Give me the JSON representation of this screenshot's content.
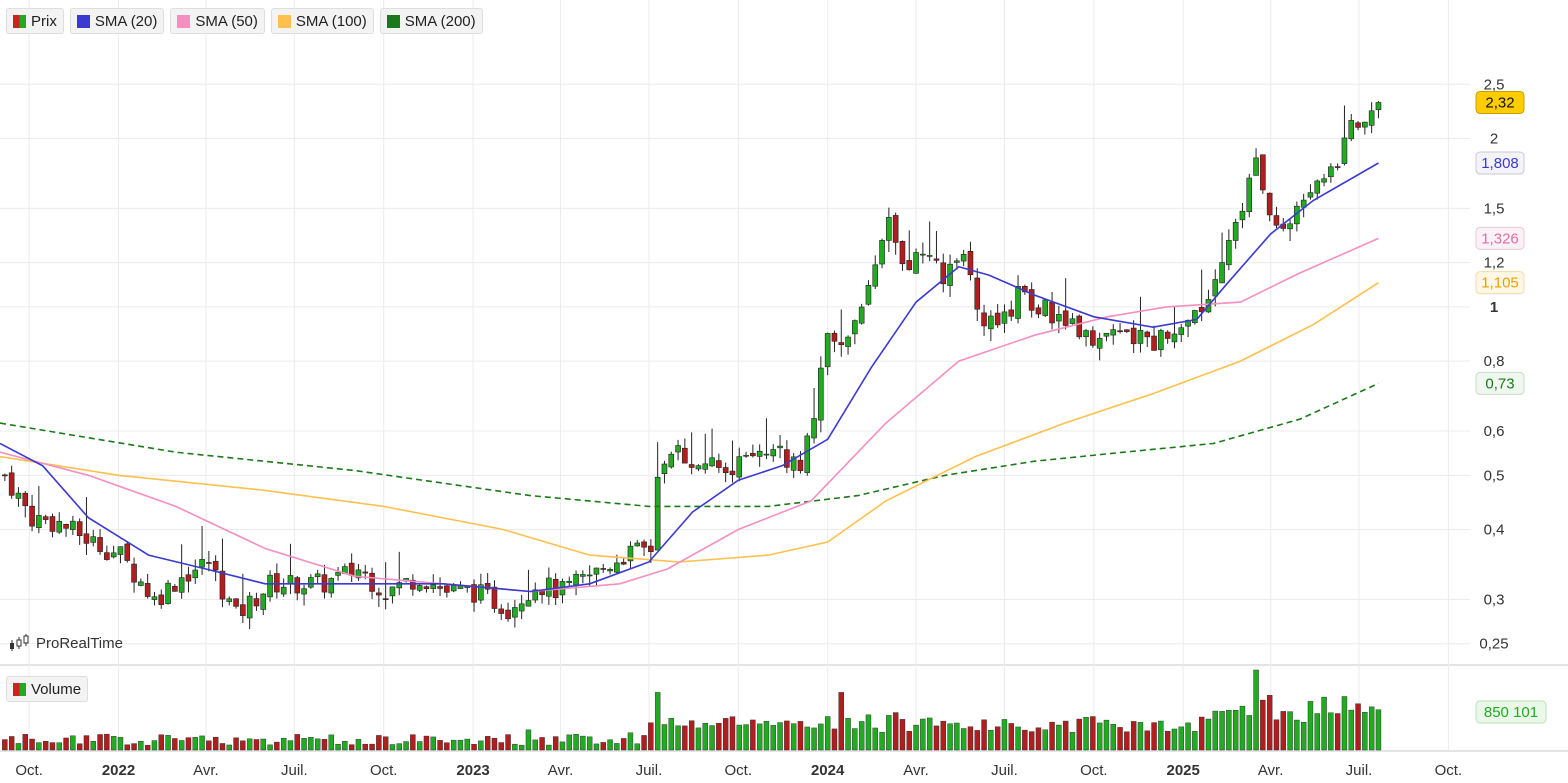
{
  "legend": [
    {
      "label": "Prix",
      "color": "#22aa22",
      "color2": "#cc2222"
    },
    {
      "label": "SMA (20)",
      "color": "#3a3ad0"
    },
    {
      "label": "SMA (50)",
      "color": "#f58fbf"
    },
    {
      "label": "SMA (100)",
      "color": "#ffc04d"
    },
    {
      "label": "SMA (200)",
      "color": "#1a7a1a"
    }
  ],
  "volume_legend": {
    "label": "Volume"
  },
  "brand": {
    "label": "ProRealTime"
  },
  "price_labels": {
    "last": "2,32",
    "sma20": "1,808",
    "sma50": "1,326",
    "sma100": "1,105",
    "sma200": "0,73",
    "volume": "850 101"
  },
  "chart_data": {
    "type": "candlestick",
    "y_scale": "log",
    "ylim": [
      0.23,
      3.0
    ],
    "y_ticks": [
      {
        "value": 2.5,
        "label": "2,5"
      },
      {
        "value": 2.0,
        "label": "2"
      },
      {
        "value": 1.5,
        "label": "1,5"
      },
      {
        "value": 1.2,
        "label": "1,2"
      },
      {
        "value": 1.0,
        "label": "1",
        "bold": true
      },
      {
        "value": 0.8,
        "label": "0,8"
      },
      {
        "value": 0.6,
        "label": "0,6"
      },
      {
        "value": 0.5,
        "label": "0,5"
      },
      {
        "value": 0.4,
        "label": "0,4"
      },
      {
        "value": 0.3,
        "label": "0,3"
      },
      {
        "value": 0.25,
        "label": "0,25"
      }
    ],
    "x_start": "2021-09-01",
    "x_end": "2025-10-15",
    "x_ticks": [
      {
        "date": "2021-10-01",
        "label": "Oct."
      },
      {
        "date": "2022-01-01",
        "label": "2022",
        "bold": true
      },
      {
        "date": "2022-04-01",
        "label": "Avr."
      },
      {
        "date": "2022-07-01",
        "label": "Juil."
      },
      {
        "date": "2022-10-01",
        "label": "Oct."
      },
      {
        "date": "2023-01-01",
        "label": "2023",
        "bold": true
      },
      {
        "date": "2023-04-01",
        "label": "Avr."
      },
      {
        "date": "2023-07-01",
        "label": "Juil."
      },
      {
        "date": "2023-10-01",
        "label": "Oct."
      },
      {
        "date": "2024-01-01",
        "label": "2024",
        "bold": true
      },
      {
        "date": "2024-04-01",
        "label": "Avr."
      },
      {
        "date": "2024-07-01",
        "label": "Juil."
      },
      {
        "date": "2024-10-01",
        "label": "Oct."
      },
      {
        "date": "2025-01-01",
        "label": "2025",
        "bold": true
      },
      {
        "date": "2025-04-01",
        "label": "Avr."
      },
      {
        "date": "2025-07-01",
        "label": "Juil."
      },
      {
        "date": "2025-10-01",
        "label": "Oct."
      }
    ],
    "price_anchors": [
      [
        "2021-09-06",
        0.5
      ],
      [
        "2021-10-04",
        0.42
      ],
      [
        "2021-11-01",
        0.41
      ],
      [
        "2021-12-06",
        0.38
      ],
      [
        "2022-01-03",
        0.36
      ],
      [
        "2022-02-07",
        0.3
      ],
      [
        "2022-03-07",
        0.33
      ],
      [
        "2022-04-04",
        0.35
      ],
      [
        "2022-05-02",
        0.28
      ],
      [
        "2022-06-06",
        0.32
      ],
      [
        "2022-07-04",
        0.32
      ],
      [
        "2022-08-01",
        0.32
      ],
      [
        "2022-09-05",
        0.34
      ],
      [
        "2022-10-03",
        0.31
      ],
      [
        "2022-11-07",
        0.33
      ],
      [
        "2022-12-05",
        0.31
      ],
      [
        "2023-01-02",
        0.31
      ],
      [
        "2023-02-06",
        0.29
      ],
      [
        "2023-03-06",
        0.32
      ],
      [
        "2023-04-03",
        0.31
      ],
      [
        "2023-05-01",
        0.33
      ],
      [
        "2023-06-05",
        0.36
      ],
      [
        "2023-07-03",
        0.37
      ],
      [
        "2023-07-10",
        0.48
      ],
      [
        "2023-07-31",
        0.55
      ],
      [
        "2023-08-28",
        0.52
      ],
      [
        "2023-10-02",
        0.52
      ],
      [
        "2023-11-06",
        0.55
      ],
      [
        "2023-12-04",
        0.52
      ],
      [
        "2023-12-18",
        0.66
      ],
      [
        "2024-01-01",
        0.88
      ],
      [
        "2024-01-22",
        0.88
      ],
      [
        "2024-02-12",
        1.05
      ],
      [
        "2024-03-04",
        1.4
      ],
      [
        "2024-03-18",
        1.15
      ],
      [
        "2024-04-01",
        1.25
      ],
      [
        "2024-04-29",
        1.15
      ],
      [
        "2024-05-20",
        1.2
      ],
      [
        "2024-06-10",
        0.95
      ],
      [
        "2024-06-24",
        0.9
      ],
      [
        "2024-07-15",
        1.05
      ],
      [
        "2024-08-05",
        1.0
      ],
      [
        "2024-09-02",
        0.95
      ],
      [
        "2024-10-07",
        0.88
      ],
      [
        "2024-11-04",
        0.88
      ],
      [
        "2024-12-02",
        0.87
      ],
      [
        "2024-12-23",
        0.92
      ],
      [
        "2025-01-20",
        1.0
      ],
      [
        "2025-02-10",
        1.25
      ],
      [
        "2025-03-03",
        1.55
      ],
      [
        "2025-03-17",
        1.8
      ],
      [
        "2025-04-07",
        1.35
      ],
      [
        "2025-04-28",
        1.45
      ],
      [
        "2025-05-19",
        1.7
      ],
      [
        "2025-06-09",
        1.8
      ],
      [
        "2025-06-23",
        2.2
      ],
      [
        "2025-07-07",
        2.05
      ],
      [
        "2025-07-21",
        2.32
      ]
    ],
    "volume_spikes": [
      [
        "2023-07-10",
        1.0
      ],
      [
        "2024-01-15",
        1.0
      ],
      [
        "2024-01-22",
        0.55
      ],
      [
        "2024-03-11",
        0.65
      ],
      [
        "2025-03-10",
        0.6
      ],
      [
        "2025-03-17",
        1.45
      ],
      [
        "2025-03-31",
        0.95
      ],
      [
        "2025-07-21",
        0.7
      ],
      [
        "2023-02-27",
        0.35
      ],
      [
        "2023-06-12",
        0.3
      ],
      [
        "2023-07-24",
        0.55
      ],
      [
        "2024-07-15",
        0.4
      ]
    ],
    "sma20_anchors": [
      [
        "2021-09-01",
        0.57
      ],
      [
        "2021-10-15",
        0.52
      ],
      [
        "2021-12-01",
        0.42
      ],
      [
        "2022-02-01",
        0.36
      ],
      [
        "2022-04-01",
        0.34
      ],
      [
        "2022-06-01",
        0.32
      ],
      [
        "2022-09-01",
        0.32
      ],
      [
        "2022-12-01",
        0.32
      ],
      [
        "2023-03-01",
        0.31
      ],
      [
        "2023-05-01",
        0.32
      ],
      [
        "2023-07-01",
        0.35
      ],
      [
        "2023-08-15",
        0.43
      ],
      [
        "2023-10-01",
        0.49
      ],
      [
        "2023-11-15",
        0.52
      ],
      [
        "2024-01-01",
        0.58
      ],
      [
        "2024-02-15",
        0.78
      ],
      [
        "2024-04-01",
        1.02
      ],
      [
        "2024-05-15",
        1.18
      ],
      [
        "2024-06-15",
        1.14
      ],
      [
        "2024-08-01",
        1.05
      ],
      [
        "2024-10-01",
        0.96
      ],
      [
        "2024-12-01",
        0.92
      ],
      [
        "2025-01-15",
        0.95
      ],
      [
        "2025-02-15",
        1.1
      ],
      [
        "2025-04-01",
        1.35
      ],
      [
        "2025-05-15",
        1.55
      ],
      [
        "2025-07-21",
        1.808
      ]
    ],
    "sma50_anchors": [
      [
        "2021-09-01",
        0.55
      ],
      [
        "2021-12-01",
        0.5
      ],
      [
        "2022-03-01",
        0.44
      ],
      [
        "2022-06-01",
        0.37
      ],
      [
        "2022-09-01",
        0.33
      ],
      [
        "2022-12-01",
        0.32
      ],
      [
        "2023-03-01",
        0.31
      ],
      [
        "2023-06-01",
        0.32
      ],
      [
        "2023-07-20",
        0.34
      ],
      [
        "2023-10-01",
        0.4
      ],
      [
        "2023-12-15",
        0.45
      ],
      [
        "2024-03-01",
        0.62
      ],
      [
        "2024-05-15",
        0.8
      ],
      [
        "2024-08-01",
        0.89
      ],
      [
        "2024-10-15",
        0.96
      ],
      [
        "2024-12-15",
        1.0
      ],
      [
        "2025-03-01",
        1.02
      ],
      [
        "2025-05-01",
        1.15
      ],
      [
        "2025-07-21",
        1.326
      ]
    ],
    "sma100_anchors": [
      [
        "2021-09-01",
        0.54
      ],
      [
        "2022-01-01",
        0.5
      ],
      [
        "2022-06-01",
        0.47
      ],
      [
        "2022-10-01",
        0.44
      ],
      [
        "2023-02-01",
        0.4
      ],
      [
        "2023-05-01",
        0.36
      ],
      [
        "2023-08-01",
        0.35
      ],
      [
        "2023-11-01",
        0.36
      ],
      [
        "2024-01-01",
        0.38
      ],
      [
        "2024-03-01",
        0.45
      ],
      [
        "2024-06-01",
        0.54
      ],
      [
        "2024-09-01",
        0.62
      ],
      [
        "2024-12-01",
        0.7
      ],
      [
        "2025-03-01",
        0.8
      ],
      [
        "2025-05-15",
        0.93
      ],
      [
        "2025-07-21",
        1.105
      ]
    ],
    "sma200_anchors": [
      [
        "2021-09-01",
        0.62
      ],
      [
        "2022-03-01",
        0.55
      ],
      [
        "2022-09-01",
        0.51
      ],
      [
        "2023-03-01",
        0.46
      ],
      [
        "2023-07-01",
        0.44
      ],
      [
        "2023-11-01",
        0.44
      ],
      [
        "2024-02-01",
        0.46
      ],
      [
        "2024-05-01",
        0.5
      ],
      [
        "2024-08-01",
        0.53
      ],
      [
        "2024-11-01",
        0.55
      ],
      [
        "2025-02-01",
        0.57
      ],
      [
        "2025-05-01",
        0.63
      ],
      [
        "2025-07-21",
        0.73
      ]
    ]
  }
}
